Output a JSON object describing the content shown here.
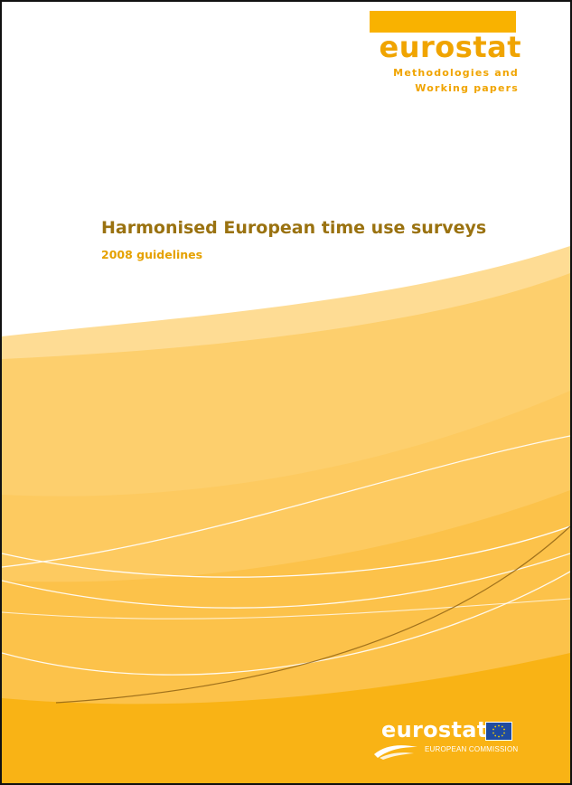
{
  "publisher": {
    "name": "eurostat",
    "series_line1": "Methodologies and",
    "series_line2": "Working papers"
  },
  "document": {
    "title": "Harmonised European time use surveys",
    "subtitle": "2008 guidelines"
  },
  "footer_logo": {
    "name": "eurostat",
    "organisation": "EUROPEAN COMMISSION"
  },
  "colors": {
    "brand_orange": "#f9b200",
    "title_brown": "#9a7210",
    "subtitle_orange": "#e5a100",
    "eu_blue": "#1f4ba0"
  },
  "icons": [
    "eu-flag-icon",
    "swoosh-icon"
  ]
}
